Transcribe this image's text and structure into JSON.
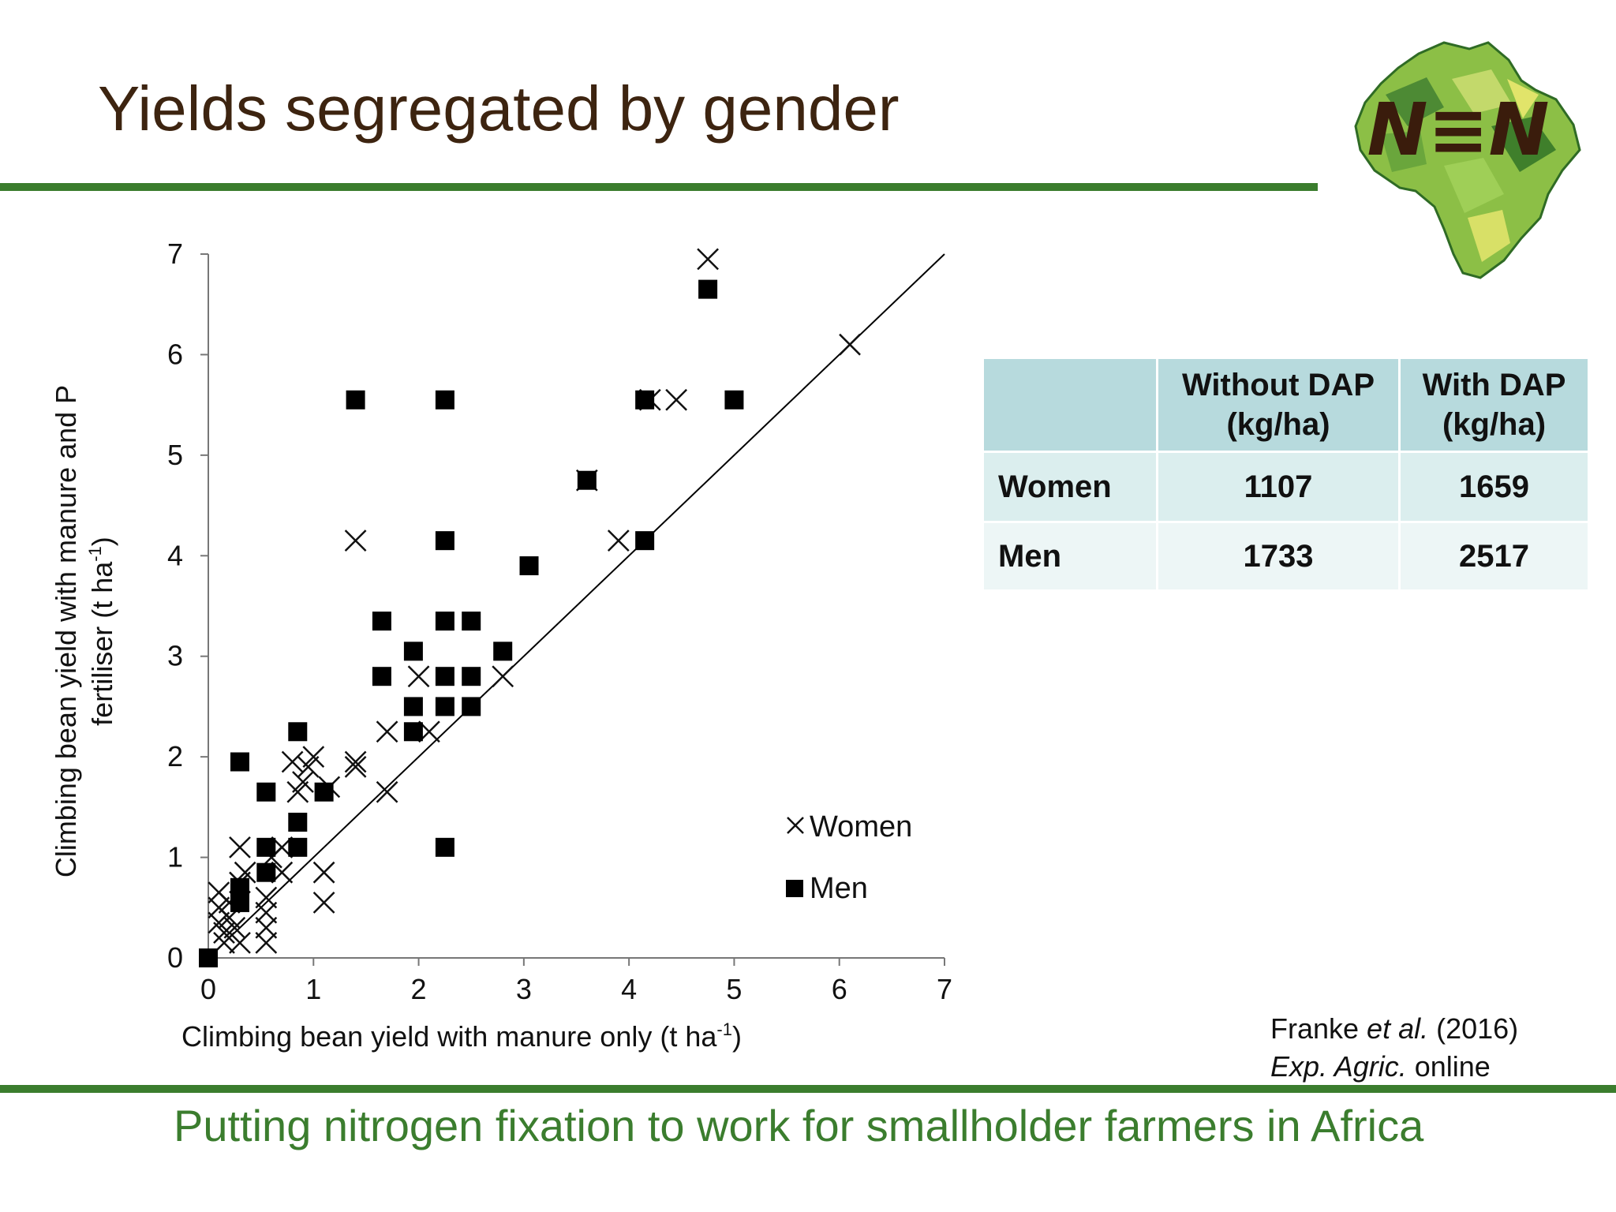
{
  "slide": {
    "title": "Yields segregated by gender",
    "footer": "Putting nitrogen fixation to work for smallholder farmers in Africa",
    "logo_text": "N≡N",
    "colors": {
      "title": "#3d2410",
      "rule": "#3b7d2e",
      "footer": "#3b7d2e",
      "table_header": "#b7dadd"
    }
  },
  "citation": {
    "line1_author": "Franke ",
    "line1_etal": "et al.",
    "line1_year": " (2016)",
    "line2_journal": "Exp. Agric.",
    "line2_rest": " online"
  },
  "table": {
    "headers": [
      "",
      "Without DAP (kg/ha)",
      "With DAP (kg/ha)"
    ],
    "header_lines": [
      [
        "Without DAP",
        "(kg/ha)"
      ],
      [
        "With DAP",
        "(kg/ha)"
      ]
    ],
    "rows": [
      {
        "label": "Women",
        "without_dap": "1107",
        "with_dap": "1659"
      },
      {
        "label": "Men",
        "without_dap": "1733",
        "with_dap": "2517"
      }
    ]
  },
  "chart_data": {
    "type": "scatter",
    "title": "",
    "xlabel": "Climbing bean yield with manure only (t ha",
    "xlabel_sup": "-1",
    "xlabel_end": ")",
    "ylabel_line1": "Climbing bean yield with manure and P",
    "ylabel_line2": "fertiliser (t ha",
    "ylabel_sup": "-1",
    "ylabel_end": ")",
    "xlim": [
      0,
      7
    ],
    "ylim": [
      0,
      7
    ],
    "xticks": [
      "0",
      "1",
      "2",
      "3",
      "4",
      "5",
      "6",
      "7"
    ],
    "yticks": [
      "0",
      "1",
      "2",
      "3",
      "4",
      "5",
      "6",
      "7"
    ],
    "grid": false,
    "legend_position": "right-center",
    "reference_line": {
      "type": "1:1",
      "from": [
        0,
        0
      ],
      "to": [
        7,
        7
      ]
    },
    "series": [
      {
        "name": "Women",
        "marker": "x",
        "points": [
          [
            0.1,
            0.65
          ],
          [
            0.1,
            0.5
          ],
          [
            0.1,
            0.35
          ],
          [
            0.15,
            0.25
          ],
          [
            0.15,
            0.15
          ],
          [
            0.2,
            0.55
          ],
          [
            0.2,
            0.4
          ],
          [
            0.25,
            0.3
          ],
          [
            0.3,
            1.1
          ],
          [
            0.3,
            0.15
          ],
          [
            0.3,
            0.75
          ],
          [
            0.35,
            0.85
          ],
          [
            0.55,
            0.6
          ],
          [
            0.55,
            0.45
          ],
          [
            0.55,
            0.3
          ],
          [
            0.55,
            0.15
          ],
          [
            0.6,
            1.0
          ],
          [
            0.7,
            0.85
          ],
          [
            0.7,
            1.1
          ],
          [
            0.8,
            1.95
          ],
          [
            0.85,
            1.65
          ],
          [
            0.9,
            1.75
          ],
          [
            0.95,
            1.9
          ],
          [
            1.0,
            2.0
          ],
          [
            1.1,
            0.85
          ],
          [
            1.1,
            0.55
          ],
          [
            1.15,
            1.7
          ],
          [
            1.4,
            1.95
          ],
          [
            1.4,
            1.9
          ],
          [
            1.4,
            4.15
          ],
          [
            1.7,
            2.25
          ],
          [
            1.7,
            1.65
          ],
          [
            2.0,
            2.8
          ],
          [
            2.1,
            2.25
          ],
          [
            2.8,
            2.8
          ],
          [
            3.6,
            4.75
          ],
          [
            3.9,
            4.15
          ],
          [
            4.2,
            5.55
          ],
          [
            4.45,
            5.55
          ],
          [
            4.75,
            6.95
          ],
          [
            6.1,
            6.1
          ]
        ]
      },
      {
        "name": "Men",
        "marker": "square",
        "points": [
          [
            0.0,
            0.0
          ],
          [
            0.3,
            0.55
          ],
          [
            0.3,
            0.65
          ],
          [
            0.3,
            0.7
          ],
          [
            0.3,
            1.95
          ],
          [
            0.55,
            0.85
          ],
          [
            0.55,
            1.1
          ],
          [
            0.55,
            1.65
          ],
          [
            0.85,
            1.1
          ],
          [
            0.85,
            1.35
          ],
          [
            0.85,
            2.25
          ],
          [
            1.1,
            1.65
          ],
          [
            1.4,
            5.55
          ],
          [
            1.65,
            2.8
          ],
          [
            1.65,
            3.35
          ],
          [
            1.95,
            2.25
          ],
          [
            1.95,
            2.5
          ],
          [
            1.95,
            3.05
          ],
          [
            2.25,
            1.1
          ],
          [
            2.25,
            2.5
          ],
          [
            2.25,
            2.8
          ],
          [
            2.25,
            3.35
          ],
          [
            2.25,
            4.15
          ],
          [
            2.25,
            5.55
          ],
          [
            2.5,
            2.5
          ],
          [
            2.5,
            2.8
          ],
          [
            2.5,
            3.35
          ],
          [
            2.8,
            3.05
          ],
          [
            3.05,
            3.9
          ],
          [
            3.6,
            4.75
          ],
          [
            4.15,
            4.15
          ],
          [
            4.15,
            5.55
          ],
          [
            4.75,
            6.65
          ],
          [
            5.0,
            5.55
          ]
        ]
      }
    ]
  }
}
